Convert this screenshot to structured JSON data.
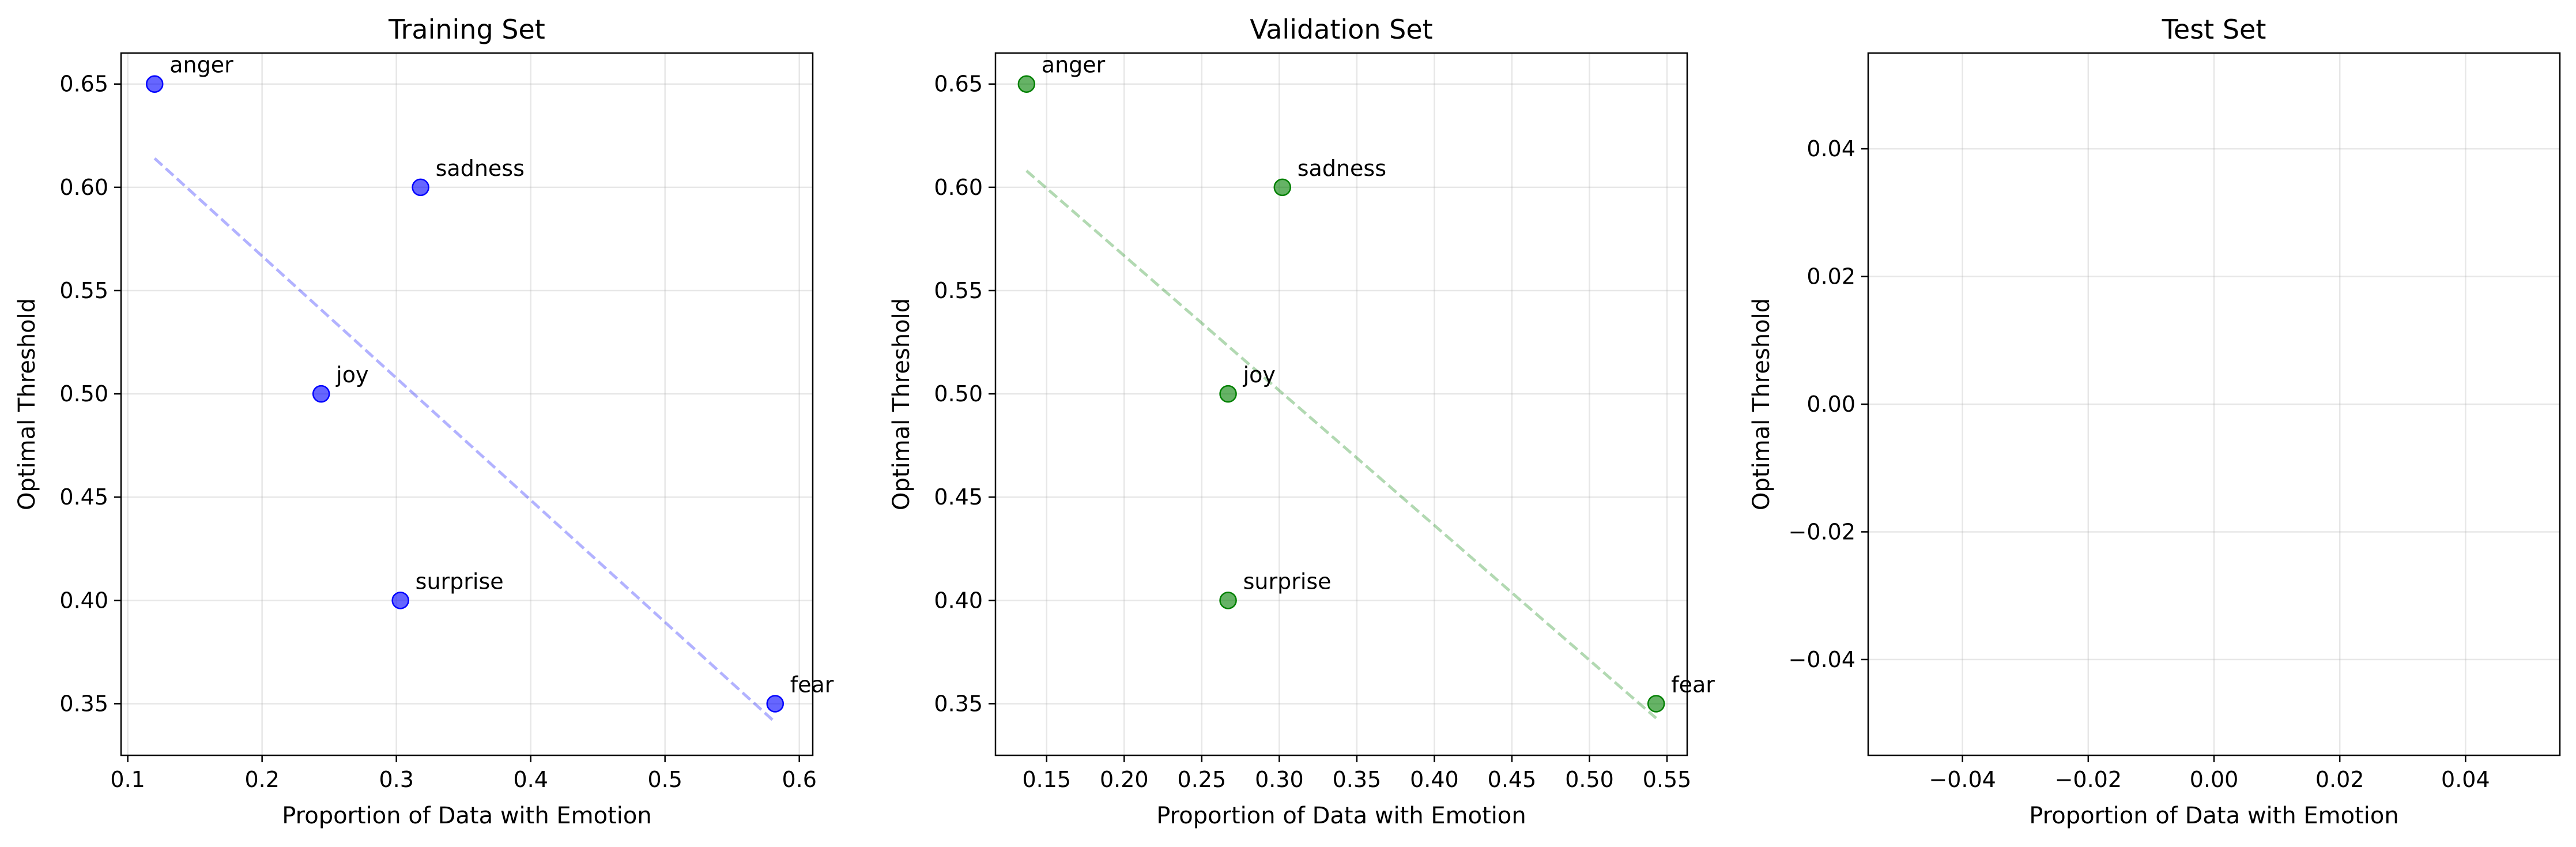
{
  "chart_data": [
    {
      "type": "scatter",
      "title": "Training Set",
      "xlabel": "Proportion of Data with Emotion",
      "ylabel": "Optimal Threshold",
      "xlim": [
        0.095,
        0.61
      ],
      "ylim": [
        0.325,
        0.665
      ],
      "xticks": [
        0.1,
        0.2,
        0.3,
        0.4,
        0.5,
        0.6
      ],
      "xtick_labels": [
        "0.1",
        "0.2",
        "0.3",
        "0.4",
        "0.5",
        "0.6"
      ],
      "yticks": [
        0.35,
        0.4,
        0.45,
        0.5,
        0.55,
        0.6,
        0.65
      ],
      "ytick_labels": [
        "0.35",
        "0.40",
        "0.45",
        "0.50",
        "0.55",
        "0.60",
        "0.65"
      ],
      "grid": true,
      "color": "#0000ff",
      "points": [
        {
          "label": "anger",
          "x": 0.12,
          "y": 0.65
        },
        {
          "label": "sadness",
          "x": 0.318,
          "y": 0.6
        },
        {
          "label": "joy",
          "x": 0.244,
          "y": 0.5
        },
        {
          "label": "surprise",
          "x": 0.303,
          "y": 0.4
        },
        {
          "label": "fear",
          "x": 0.582,
          "y": 0.35
        }
      ],
      "trendline": {
        "style": "dashed",
        "x": [
          0.12,
          0.582
        ],
        "y": [
          0.614,
          0.341
        ]
      }
    },
    {
      "type": "scatter",
      "title": "Validation Set",
      "xlabel": "Proportion of Data with Emotion",
      "ylabel": "Optimal Threshold",
      "xlim": [
        0.117,
        0.563
      ],
      "ylim": [
        0.325,
        0.665
      ],
      "xticks": [
        0.15,
        0.2,
        0.25,
        0.3,
        0.35,
        0.4,
        0.45,
        0.5,
        0.55
      ],
      "xtick_labels": [
        "0.15",
        "0.20",
        "0.25",
        "0.30",
        "0.35",
        "0.40",
        "0.45",
        "0.50",
        "0.55"
      ],
      "yticks": [
        0.35,
        0.4,
        0.45,
        0.5,
        0.55,
        0.6,
        0.65
      ],
      "ytick_labels": [
        "0.35",
        "0.40",
        "0.45",
        "0.50",
        "0.55",
        "0.60",
        "0.65"
      ],
      "grid": true,
      "color": "#008000",
      "points": [
        {
          "label": "anger",
          "x": 0.137,
          "y": 0.65
        },
        {
          "label": "sadness",
          "x": 0.302,
          "y": 0.6
        },
        {
          "label": "joy",
          "x": 0.267,
          "y": 0.5
        },
        {
          "label": "surprise",
          "x": 0.267,
          "y": 0.4
        },
        {
          "label": "fear",
          "x": 0.543,
          "y": 0.35
        }
      ],
      "trendline": {
        "style": "dashed",
        "x": [
          0.137,
          0.543
        ],
        "y": [
          0.608,
          0.343
        ]
      }
    },
    {
      "type": "scatter",
      "title": "Test Set",
      "xlabel": "Proportion of Data with Emotion",
      "ylabel": "Optimal Threshold",
      "xlim": [
        -0.055,
        0.055
      ],
      "ylim": [
        -0.055,
        0.055
      ],
      "xticks": [
        -0.04,
        -0.02,
        0.0,
        0.02,
        0.04
      ],
      "xtick_labels": [
        "−0.04",
        "−0.02",
        "0.00",
        "0.02",
        "0.04"
      ],
      "yticks": [
        -0.04,
        -0.02,
        0.0,
        0.02,
        0.04
      ],
      "ytick_labels": [
        "−0.04",
        "−0.02",
        "0.00",
        "0.02",
        "0.04"
      ],
      "grid": true,
      "color": "#0000ff",
      "points": []
    }
  ]
}
